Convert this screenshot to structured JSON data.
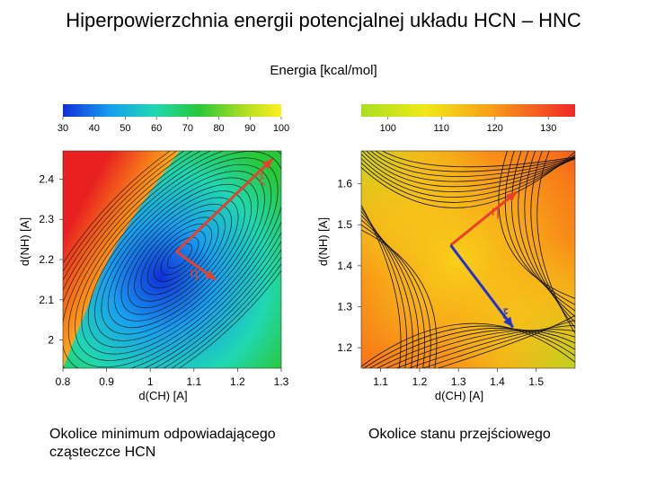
{
  "title": "Hiperpowierzchnia energii potencjalnej układu HCN – HNC",
  "subtitle": "Energia [kcal/mol]",
  "chart_data": [
    {
      "type": "heatmap",
      "xlabel": "d(CH) [A]",
      "ylabel": "d(NH) [A]",
      "xlim": [
        0.8,
        1.3
      ],
      "ylim": [
        1.93,
        2.47
      ],
      "xticks": [
        "0.8",
        "0.9",
        "1",
        "1.1",
        "1.2",
        "1.3"
      ],
      "yticks": [
        "2",
        "2.1",
        "2.2",
        "2.3",
        "2.4"
      ],
      "colorbar": {
        "ticks": [
          "30",
          "40",
          "50",
          "60",
          "70",
          "80",
          "90",
          "100"
        ],
        "range": [
          30,
          100
        ]
      },
      "minimum": {
        "x": 1.06,
        "y": 2.22
      },
      "arrows": [
        {
          "label": "ξ",
          "from": {
            "x": 1.06,
            "y": 2.22
          },
          "to": {
            "x": 1.28,
            "y": 2.45
          },
          "color": "#e8402a"
        },
        {
          "label": "η",
          "from": {
            "x": 1.06,
            "y": 2.22
          },
          "to": {
            "x": 1.15,
            "y": 2.15
          },
          "color": "#e8402a"
        }
      ],
      "caption": "Okolice minimum odpowiadającego cząsteczce HCN"
    },
    {
      "type": "heatmap",
      "xlabel": "d(CH) [A]",
      "ylabel": "d(NH) [A]",
      "xlim": [
        1.05,
        1.6
      ],
      "ylim": [
        1.15,
        1.68
      ],
      "xticks": [
        "1.1",
        "1.2",
        "1.3",
        "1.4",
        "1.5"
      ],
      "yticks": [
        "1.2",
        "1.3",
        "1.4",
        "1.5",
        "1.6"
      ],
      "colorbar": {
        "ticks": [
          "100",
          "110",
          "120",
          "130"
        ],
        "range": [
          95,
          135
        ]
      },
      "saddle": {
        "x": 1.28,
        "y": 1.45
      },
      "arrows": [
        {
          "label": "η",
          "from": {
            "x": 1.28,
            "y": 1.45
          },
          "to": {
            "x": 1.45,
            "y": 1.58
          },
          "color": "#e8402a"
        },
        {
          "label": "ξ",
          "from": {
            "x": 1.28,
            "y": 1.45
          },
          "to": {
            "x": 1.44,
            "y": 1.25
          },
          "color": "#2233cc"
        }
      ],
      "caption": "Okolice stanu przejściowego"
    }
  ]
}
